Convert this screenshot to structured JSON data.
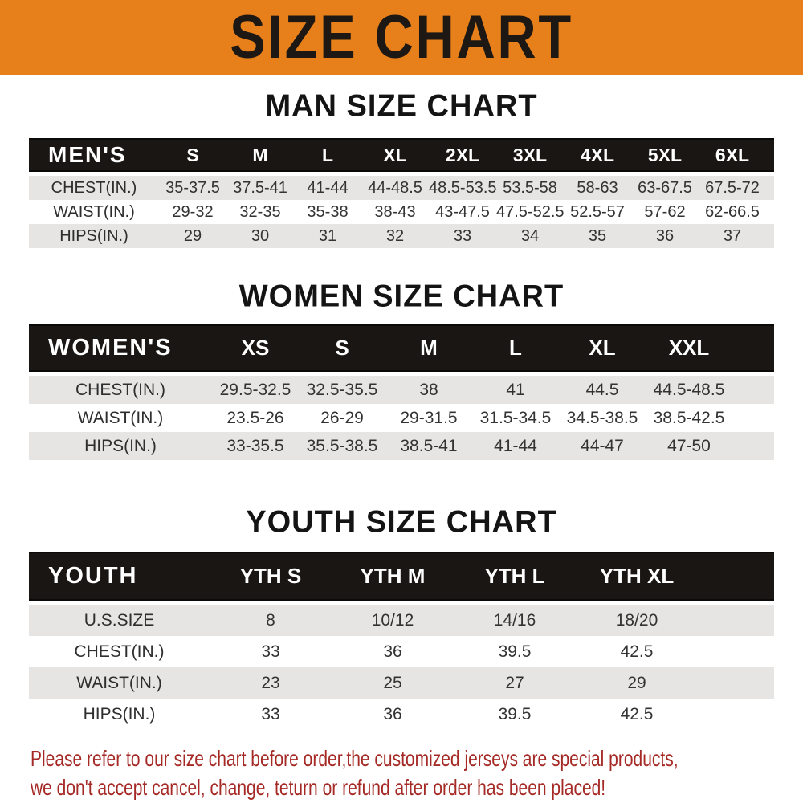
{
  "banner": {
    "title": "SIZE CHART"
  },
  "sections": [
    {
      "id": "man",
      "title": "MAN SIZE CHART",
      "header_label": "MEN'S",
      "columns": [
        "S",
        "M",
        "L",
        "XL",
        "2XL",
        "3XL",
        "4XL",
        "5XL",
        "6XL"
      ],
      "rows": [
        {
          "label": "CHEST(IN.)",
          "values": [
            "35-37.5",
            "37.5-41",
            "41-44",
            "44-48.5",
            "48.5-53.5",
            "53.5-58",
            "58-63",
            "63-67.5",
            "67.5-72"
          ]
        },
        {
          "label": "WAIST(IN.)",
          "values": [
            "29-32",
            "32-35",
            "35-38",
            "38-43",
            "43-47.5",
            "47.5-52.5",
            "52.5-57",
            "57-62",
            "62-66.5"
          ]
        },
        {
          "label": "HIPS(IN.)",
          "values": [
            "29",
            "30",
            "31",
            "32",
            "33",
            "34",
            "35",
            "36",
            "37"
          ]
        }
      ]
    },
    {
      "id": "women",
      "title": "WOMEN SIZE CHART",
      "header_label": "WOMEN'S",
      "columns": [
        "XS",
        "S",
        "M",
        "L",
        "XL",
        "XXL"
      ],
      "rows": [
        {
          "label": "CHEST(IN.)",
          "values": [
            "29.5-32.5",
            "32.5-35.5",
            "38",
            "41",
            "44.5",
            "44.5-48.5"
          ]
        },
        {
          "label": "WAIST(IN.)",
          "values": [
            "23.5-26",
            "26-29",
            "29-31.5",
            "31.5-34.5",
            "34.5-38.5",
            "38.5-42.5"
          ]
        },
        {
          "label": "HIPS(IN.)",
          "values": [
            "33-35.5",
            "35.5-38.5",
            "38.5-41",
            "41-44",
            "44-47",
            "47-50"
          ]
        }
      ]
    },
    {
      "id": "youth",
      "title": "YOUTH SIZE CHART",
      "header_label": "YOUTH",
      "columns": [
        "YTH S",
        "YTH M",
        "YTH L",
        "YTH XL"
      ],
      "rows": [
        {
          "label": "U.S.SIZE",
          "values": [
            "8",
            "10/12",
            "14/16",
            "18/20"
          ]
        },
        {
          "label": "CHEST(IN.)",
          "values": [
            "33",
            "36",
            "39.5",
            "42.5"
          ]
        },
        {
          "label": "WAIST(IN.)",
          "values": [
            "23",
            "25",
            "27",
            "29"
          ]
        },
        {
          "label": "HIPS(IN.)",
          "values": [
            "33",
            "36",
            "39.5",
            "42.5"
          ]
        }
      ]
    }
  ],
  "disclaimer": {
    "lines": [
      "Please refer to our size chart before order,the customized jerseys are special products,",
      "we don't accept cancel, change, teturn or refund after order has been placed!"
    ]
  },
  "colors": {
    "banner_bg": "#E7801A",
    "banner_text": "#1d1814",
    "header_band_bg": "#1A1613",
    "header_band_text": "#ffffff",
    "stripe_row_bg": "#E6E5E4",
    "body_text": "#333333",
    "disclaimer_text": "#A52A26"
  }
}
